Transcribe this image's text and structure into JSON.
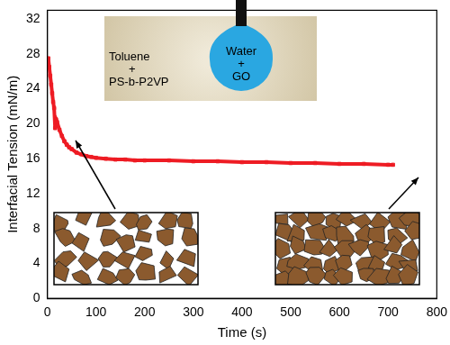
{
  "chart_data": {
    "type": "line",
    "x_label": "Time (s)",
    "y_label": "Interfacial Tension (mN/m)",
    "annotations": [
      "Water",
      "+",
      "GO",
      "Toluene",
      "+",
      "PS-b-P2VP"
    ],
    "x": [
      2,
      4,
      6,
      8,
      10,
      12,
      14,
      16,
      18,
      20,
      25,
      30,
      35,
      40,
      45,
      50,
      60,
      70,
      80,
      90,
      100,
      120,
      140,
      160,
      180,
      200,
      250,
      300,
      350,
      400,
      450,
      500,
      550,
      600,
      650,
      700,
      710
    ],
    "values": [
      27.5,
      26.5,
      25.5,
      24.5,
      23.5,
      22.5,
      21.8,
      19.5,
      20.5,
      20.2,
      19.3,
      18.6,
      18.0,
      17.6,
      17.3,
      17.1,
      16.7,
      16.5,
      16.3,
      16.2,
      16.1,
      16.0,
      15.9,
      15.9,
      15.8,
      15.8,
      15.8,
      15.7,
      15.7,
      15.6,
      15.6,
      15.5,
      15.5,
      15.4,
      15.4,
      15.3,
      15.3
    ],
    "color": "#ee1c24",
    "marker": "square",
    "xlim": [
      0,
      800
    ],
    "xticks": [
      0,
      100,
      200,
      300,
      400,
      500,
      600,
      700,
      800
    ],
    "ylim": [
      0,
      33
    ],
    "yticks": [
      0,
      4,
      8,
      12,
      16,
      20,
      24,
      28,
      32
    ],
    "grid": false
  }
}
